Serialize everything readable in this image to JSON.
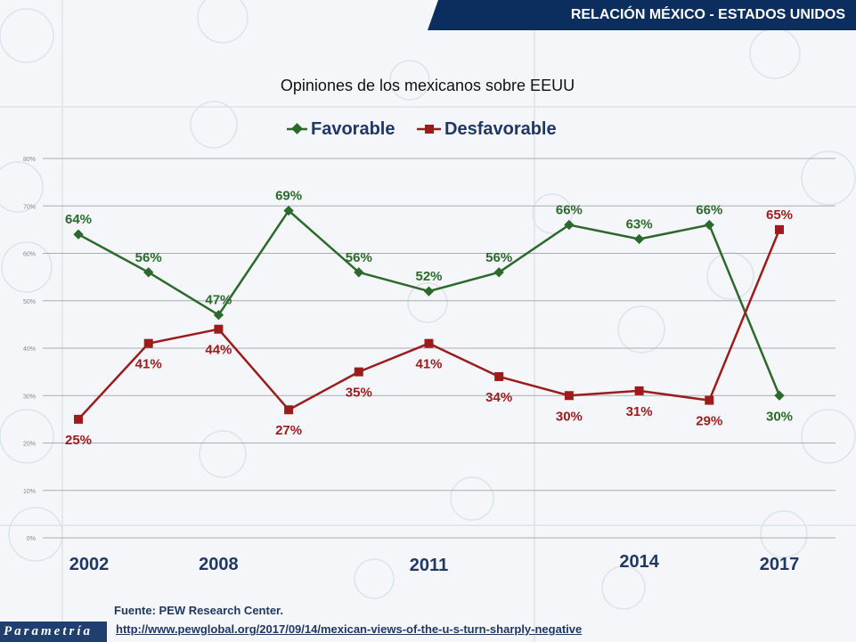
{
  "header": {
    "banner_title": "RELACIÓN MÉXICO -  ESTADOS UNIDOS"
  },
  "brand": {
    "logo_text": "Parametría"
  },
  "footer": {
    "source": "Fuente: PEW Research Center.",
    "link": "http://www.pewglobal.org/2017/09/14/mexican-views-of-the-u-s-turn-sharply-negative"
  },
  "colors": {
    "favorable": "#2b6a2b",
    "desfavorable": "#9c1c1c",
    "banner": "#0b2e5e",
    "year_label": "#1f3864"
  },
  "chart_data": {
    "type": "line",
    "title": "Opiniones de los mexicanos sobre EEUU",
    "ylim": [
      0,
      80
    ],
    "yticks": [
      "0%",
      "10%",
      "20%",
      "30%",
      "40%",
      "50%",
      "60%",
      "70%",
      "80%"
    ],
    "points": 11,
    "year_labels": [
      {
        "index": 0,
        "label": "2002"
      },
      {
        "index": 2,
        "label": "2008"
      },
      {
        "index": 5,
        "label": "2011"
      },
      {
        "index": 8,
        "label": "2014"
      },
      {
        "index": 10,
        "label": "2017"
      }
    ],
    "series": [
      {
        "name": "Favorable",
        "marker": "diamond",
        "values": [
          64,
          56,
          47,
          69,
          56,
          52,
          56,
          66,
          63,
          66,
          30
        ],
        "labels": [
          "64%",
          "56%",
          "47%",
          "69%",
          "56%",
          "52%",
          "56%",
          "66%",
          "63%",
          "66%",
          "30%"
        ]
      },
      {
        "name": "Desfavorable",
        "marker": "square",
        "values": [
          25,
          41,
          44,
          27,
          35,
          41,
          34,
          30,
          31,
          29,
          65
        ],
        "labels": [
          "25%",
          "41%",
          "44%",
          "27%",
          "35%",
          "41%",
          "34%",
          "30%",
          "31%",
          "29%",
          "65%"
        ]
      }
    ],
    "legend": "top-center"
  }
}
